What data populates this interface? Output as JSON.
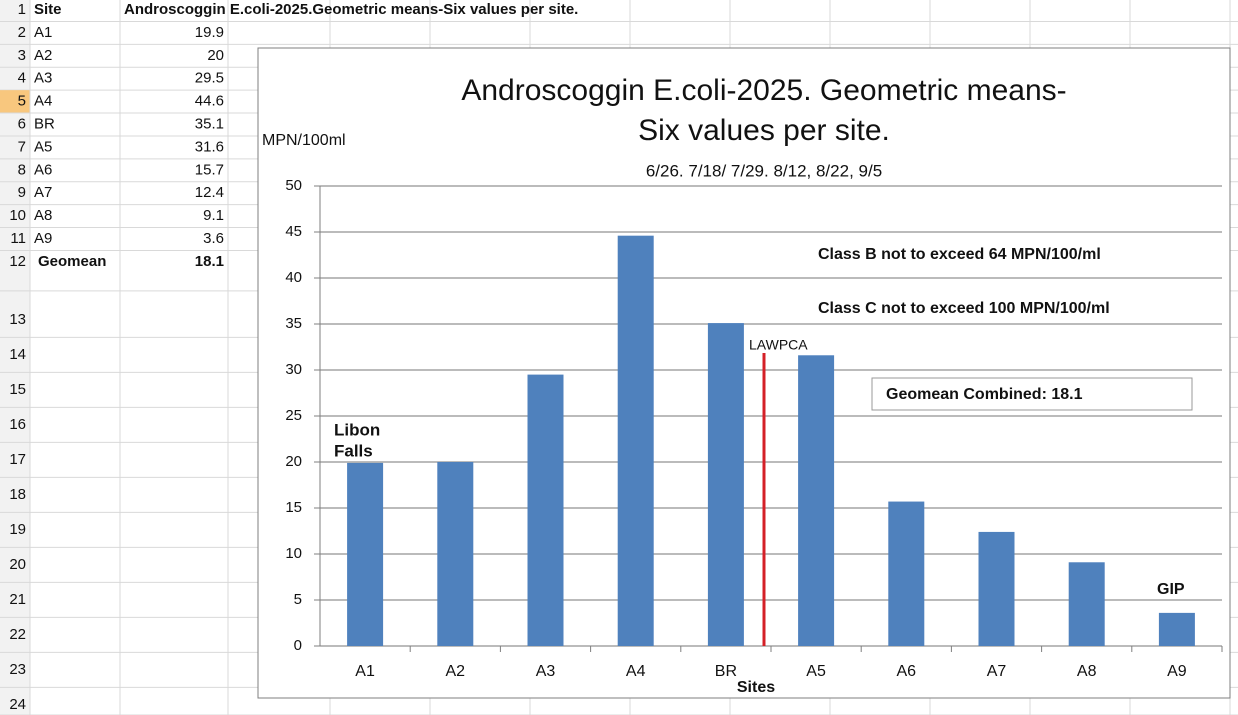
{
  "sheet": {
    "row_numbers": [
      1,
      2,
      3,
      4,
      5,
      6,
      7,
      8,
      9,
      10,
      11,
      12,
      13,
      14,
      15,
      16,
      17,
      18,
      19,
      20,
      21,
      22,
      23,
      24
    ],
    "selected_row": 5,
    "header": [
      "Site",
      "Androscoggin E.coli-2025.Geometric means-Six values per site."
    ],
    "rows": [
      [
        "A1",
        19.9
      ],
      [
        "A2",
        20
      ],
      [
        "A3",
        29.5
      ],
      [
        "A4",
        44.6
      ],
      [
        "BR",
        35.1
      ],
      [
        "A5",
        31.6
      ],
      [
        "A6",
        15.7
      ],
      [
        "A7",
        12.4
      ],
      [
        "A8",
        9.1
      ],
      [
        "A9",
        3.6
      ]
    ],
    "total": {
      "label": "Geomean",
      "value": 18.1
    }
  },
  "chart_data": {
    "type": "bar",
    "title": [
      "Androscoggin E.coli-2025. Geometric means-",
      "Six values per site."
    ],
    "subtitle": "6/26. 7/18/ 7/29. 8/12, 8/22, 9/5",
    "y_label": "MPN/100ml",
    "x_label": "Sites",
    "categories": [
      "A1",
      "A2",
      "A3",
      "A4",
      "BR",
      "A5",
      "A6",
      "A7",
      "A8",
      "A9"
    ],
    "values": [
      19.9,
      20,
      29.5,
      44.6,
      35.1,
      31.6,
      15.7,
      12.4,
      9.1,
      3.6
    ],
    "color": "#4f81bd",
    "ylim": [
      0,
      50
    ],
    "yticks": [
      0,
      5,
      10,
      15,
      20,
      25,
      30,
      35,
      40,
      45,
      50
    ],
    "grid": true,
    "annotations": [
      "Libon",
      "Falls",
      "LAWPCA",
      "Class B not to exceed 64 MPN/100/ml",
      "Class C not to exceed 100 MPN/100/ml",
      "Geomean Combined: 18.1",
      "GIP"
    ],
    "marker_color": "#d42027"
  }
}
